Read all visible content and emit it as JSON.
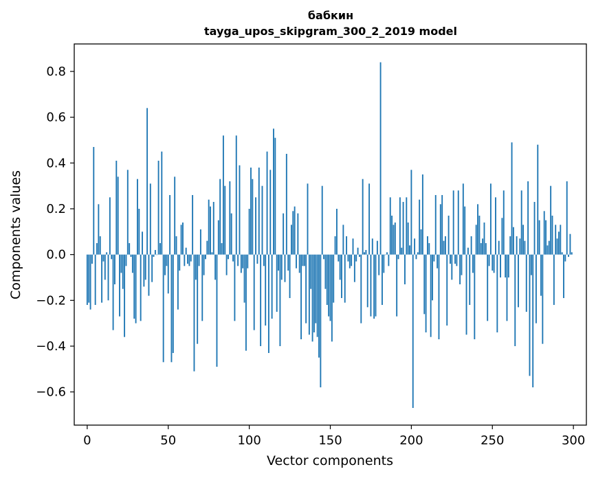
{
  "chart_data": {
    "type": "bar",
    "title": "бабкин",
    "subtitle": "tayga_upos_skipgram_300_2_2019 model",
    "xlabel": "Vector components",
    "ylabel": "Components values",
    "xlim": [
      -8,
      308
    ],
    "ylim": [
      -0.745,
      0.92
    ],
    "xticks": [
      0,
      50,
      100,
      150,
      200,
      250,
      300
    ],
    "xtick_labels": [
      "0",
      "50",
      "100",
      "150",
      "200",
      "250",
      "300"
    ],
    "yticks": [
      -0.6,
      -0.4,
      -0.2,
      0.0,
      0.2,
      0.4,
      0.6,
      0.8
    ],
    "ytick_labels": [
      "−0.6",
      "−0.4",
      "−0.2",
      "0.0",
      "0.2",
      "0.4",
      "0.6",
      "0.8"
    ],
    "bar_color": "#1f77b4",
    "series": [
      {
        "name": "бабкин",
        "values": [
          -0.22,
          -0.21,
          -0.24,
          -0.04,
          0.47,
          -0.22,
          0.05,
          0.22,
          0.08,
          -0.21,
          -0.03,
          -0.11,
          0.01,
          -0.2,
          0.25,
          -0.02,
          -0.33,
          -0.13,
          0.41,
          0.34,
          -0.27,
          -0.08,
          -0.15,
          -0.36,
          -0.05,
          0.37,
          0.05,
          -0.01,
          -0.08,
          -0.28,
          -0.3,
          0.33,
          0.2,
          -0.29,
          0.1,
          -0.14,
          -0.11,
          0.64,
          -0.18,
          0.31,
          -0.12,
          -0.01,
          0.02,
          0.0,
          0.41,
          0.05,
          0.45,
          -0.47,
          -0.09,
          -0.05,
          -0.17,
          0.26,
          -0.47,
          -0.43,
          0.34,
          0.08,
          -0.24,
          -0.07,
          0.13,
          0.14,
          -0.05,
          0.03,
          -0.04,
          -0.05,
          -0.03,
          0.26,
          -0.51,
          -0.11,
          -0.39,
          -0.05,
          0.11,
          -0.29,
          -0.09,
          -0.02,
          0.06,
          0.24,
          0.21,
          0.01,
          0.23,
          -0.11,
          -0.49,
          0.15,
          0.33,
          0.05,
          0.52,
          0.3,
          -0.09,
          -0.02,
          0.32,
          0.18,
          -0.03,
          -0.29,
          0.52,
          -0.05,
          0.39,
          -0.08,
          -0.06,
          -0.21,
          -0.42,
          -0.06,
          0.2,
          0.38,
          0.33,
          -0.33,
          0.25,
          -0.04,
          0.38,
          -0.4,
          0.3,
          -0.05,
          -0.31,
          0.45,
          -0.43,
          0.37,
          -0.28,
          0.55,
          0.51,
          -0.25,
          -0.07,
          -0.4,
          -0.11,
          0.18,
          -0.12,
          0.44,
          -0.07,
          -0.19,
          0.13,
          0.19,
          0.21,
          -0.06,
          0.18,
          -0.08,
          -0.37,
          -0.05,
          -0.05,
          -0.3,
          0.31,
          -0.35,
          -0.15,
          -0.38,
          -0.34,
          -0.3,
          -0.36,
          -0.45,
          -0.58,
          0.3,
          -0.02,
          -0.15,
          -0.22,
          -0.27,
          -0.29,
          -0.38,
          -0.21,
          0.08,
          0.2,
          -0.03,
          -0.11,
          -0.19,
          0.13,
          -0.21,
          0.08,
          -0.03,
          -0.06,
          -0.05,
          0.07,
          -0.12,
          -0.03,
          0.03,
          -0.01,
          -0.3,
          0.33,
          0.01,
          0.02,
          -0.23,
          0.31,
          -0.27,
          0.07,
          -0.28,
          -0.27,
          0.06,
          -0.09,
          0.84,
          -0.22,
          -0.08,
          0.0,
          0.01,
          -0.05,
          0.25,
          0.17,
          0.13,
          0.14,
          -0.27,
          -0.02,
          0.25,
          0.03,
          0.23,
          -0.13,
          0.25,
          0.14,
          0.04,
          0.37,
          -0.67,
          0.07,
          -0.02,
          0.01,
          0.24,
          0.11,
          0.35,
          -0.26,
          -0.34,
          0.08,
          0.05,
          -0.36,
          -0.2,
          -0.03,
          0.26,
          -0.06,
          -0.37,
          0.22,
          0.26,
          0.06,
          0.08,
          -0.31,
          0.17,
          -0.04,
          -0.11,
          0.28,
          -0.04,
          -0.05,
          0.28,
          -0.13,
          -0.09,
          0.31,
          0.21,
          -0.35,
          0.03,
          -0.22,
          0.08,
          -0.08,
          -0.37,
          0.13,
          0.22,
          0.17,
          0.05,
          0.07,
          0.14,
          0.05,
          -0.29,
          -0.05,
          0.31,
          -0.07,
          -0.08,
          0.25,
          -0.34,
          0.06,
          -0.1,
          0.16,
          0.28,
          -0.1,
          -0.29,
          -0.1,
          0.08,
          0.49,
          0.12,
          -0.4,
          0.08,
          -0.23,
          0.07,
          0.28,
          0.13,
          0.06,
          -0.25,
          0.32,
          -0.53,
          -0.09,
          -0.58,
          0.23,
          -0.3,
          0.48,
          0.15,
          -0.18,
          -0.39,
          0.19,
          0.15,
          0.04,
          0.06,
          0.3,
          0.17,
          -0.22,
          0.13,
          0.07,
          0.1,
          0.13,
          0.01,
          -0.19,
          -0.03,
          0.32,
          -0.01,
          0.09,
          0.01
        ]
      }
    ]
  }
}
